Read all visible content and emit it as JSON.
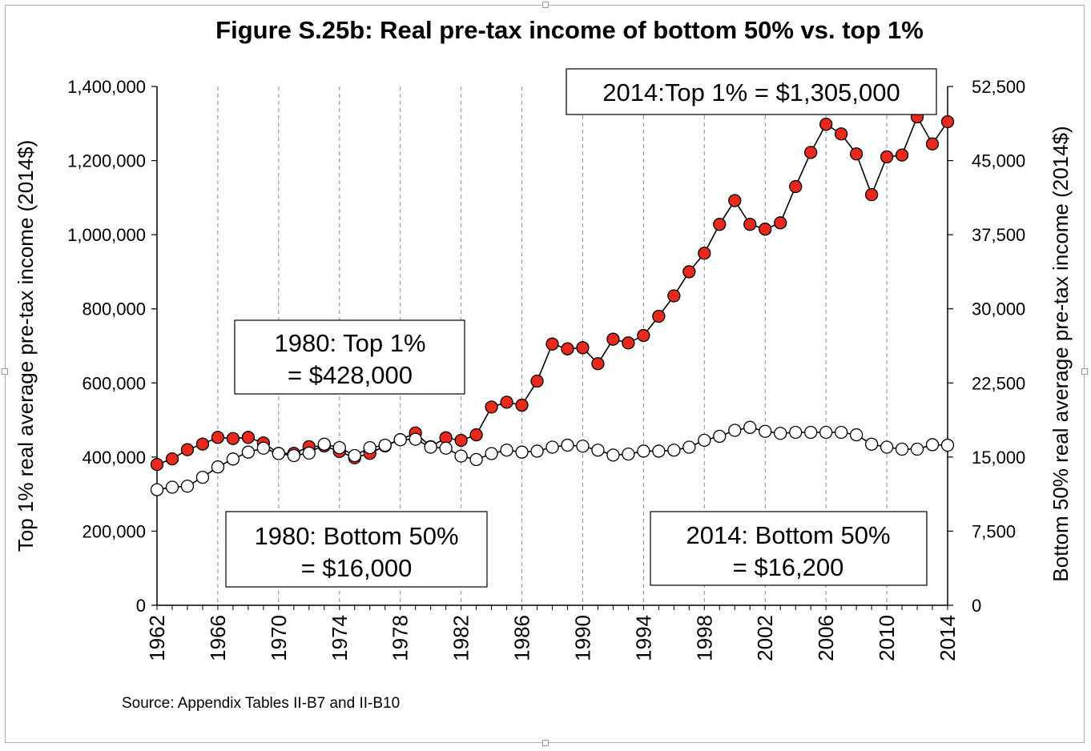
{
  "chart_data": {
    "type": "line",
    "title": "Figure S.25b: Real pre-tax income of bottom 50% vs. top 1%",
    "ylabel_left": "Top 1% real average pre-tax income (2014$)",
    "ylabel_right": "Bottom 50% real average pre-tax income (2014$)",
    "source": "Source: Appendix Tables II-B7 and II-B10",
    "xlim": [
      1962,
      2014
    ],
    "ylim_left": [
      0,
      1400000
    ],
    "ylim_right": [
      0,
      52500
    ],
    "grid": "vertical dashed",
    "x_ticks": [
      "1962",
      "1966",
      "1970",
      "1974",
      "1978",
      "1982",
      "1986",
      "1990",
      "1994",
      "1998",
      "2002",
      "2006",
      "2010",
      "2014"
    ],
    "y_ticks_left": [
      "0",
      "200,000",
      "400,000",
      "600,000",
      "800,000",
      "1,000,000",
      "1,200,000",
      "1,400,000"
    ],
    "y_ticks_right": [
      "0",
      "7,500",
      "15,000",
      "22,500",
      "30,000",
      "37,500",
      "45,000",
      "52,500"
    ],
    "x": [
      1962,
      1963,
      1964,
      1965,
      1966,
      1967,
      1968,
      1969,
      1970,
      1971,
      1972,
      1973,
      1974,
      1975,
      1976,
      1977,
      1978,
      1979,
      1980,
      1981,
      1982,
      1983,
      1984,
      1985,
      1986,
      1987,
      1988,
      1989,
      1990,
      1991,
      1992,
      1993,
      1994,
      1995,
      1996,
      1997,
      1998,
      1999,
      2000,
      2001,
      2002,
      2003,
      2004,
      2005,
      2006,
      2007,
      2008,
      2009,
      2010,
      2011,
      2012,
      2013,
      2014
    ],
    "series": [
      {
        "axis": "left",
        "color": "#e8291c",
        "marker": "filled-circle",
        "values": [
          380000,
          395000,
          420000,
          435000,
          453000,
          450000,
          453000,
          438000,
          410000,
          410000,
          428000,
          430000,
          415000,
          398000,
          410000,
          430000,
          447000,
          465000,
          428000,
          452000,
          445000,
          460000,
          535000,
          548000,
          540000,
          605000,
          705000,
          692000,
          695000,
          652000,
          718000,
          708000,
          728000,
          780000,
          835000,
          900000,
          950000,
          1028000,
          1092000,
          1028000,
          1015000,
          1032000,
          1130000,
          1222000,
          1298000,
          1272000,
          1218000,
          1108000,
          1210000,
          1215000,
          1318000,
          1245000,
          1305000
        ]
      },
      {
        "axis": "right",
        "color": "#ffffff",
        "marker": "hollow-circle",
        "values": [
          11700,
          11950,
          12050,
          12950,
          14000,
          14800,
          15500,
          15900,
          15350,
          15150,
          15400,
          16300,
          15950,
          15150,
          15950,
          16200,
          16750,
          16800,
          16000,
          15900,
          15100,
          14750,
          15350,
          15700,
          15500,
          15600,
          16000,
          16200,
          16100,
          15700,
          15200,
          15300,
          15600,
          15600,
          15700,
          16000,
          16700,
          17100,
          17700,
          18000,
          17600,
          17400,
          17500,
          17500,
          17500,
          17500,
          17250,
          16300,
          16000,
          15800,
          15800,
          16250,
          16200
        ]
      }
    ]
  },
  "annotations": {
    "top_2014": "2014:Top 1% = $1,305,000",
    "top_1980_line1": "1980: Top 1%",
    "top_1980_line2": "= $428,000",
    "bottom_1980_line1": "1980: Bottom 50%",
    "bottom_1980_line2": "= $16,000",
    "bottom_2014_line1": "2014: Bottom 50%",
    "bottom_2014_line2": "= $16,200"
  }
}
